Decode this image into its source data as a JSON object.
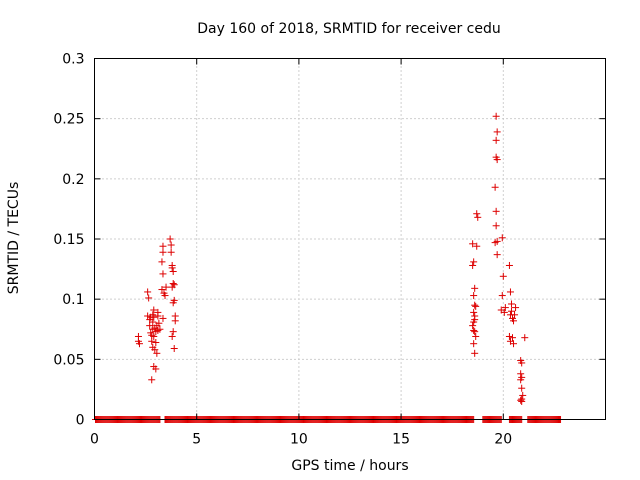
{
  "chart_data": {
    "type": "scatter",
    "title": "Day 160 of 2018, SRMTID for receiver cedu",
    "xlabel": "GPS time / hours",
    "ylabel": "SRMTID / TECUs",
    "xlim": [
      0,
      25
    ],
    "ylim": [
      0,
      0.3
    ],
    "xticks": [
      0,
      5,
      10,
      15,
      20
    ],
    "xtick_labels": [
      "0",
      "5",
      "10",
      "15",
      "20"
    ],
    "yticks": [
      0,
      0.05,
      0.1,
      0.15,
      0.2,
      0.25,
      0.3
    ],
    "ytick_labels": [
      "0",
      "0.05",
      "0.1",
      "0.15",
      "0.2",
      "0.25",
      "0.3"
    ],
    "grid": true,
    "marker": "plus",
    "color": "#dd0000",
    "baseline": {
      "y": 0,
      "x_ranges": [
        [
          0.05,
          3.2
        ],
        [
          3.45,
          18.55
        ],
        [
          19.0,
          19.9
        ],
        [
          20.3,
          20.9
        ],
        [
          21.2,
          22.8
        ]
      ]
    },
    "series": [
      {
        "name": "SRMTID",
        "x": [
          2.15,
          2.2,
          2.15,
          2.6,
          2.65,
          2.6,
          2.75,
          2.7,
          2.75,
          2.8,
          2.8,
          2.7,
          2.85,
          2.9,
          2.85,
          2.95,
          3.0,
          2.9,
          3.0,
          2.85,
          2.95,
          3.05,
          2.9,
          3.0,
          2.8,
          2.85,
          2.9,
          3.1,
          3.15,
          3.05,
          3.1,
          3.2,
          3.1,
          3.35,
          3.35,
          3.3,
          3.35,
          3.3,
          3.4,
          3.35,
          3.45,
          3.5,
          3.7,
          3.75,
          3.75,
          3.8,
          3.85,
          3.85,
          3.8,
          3.9,
          3.9,
          3.95,
          3.95,
          3.85,
          3.8,
          3.9,
          3.8,
          3.85,
          18.5,
          18.55,
          18.5,
          18.6,
          18.55,
          18.6,
          18.65,
          18.55,
          18.6,
          18.6,
          18.55,
          18.5,
          18.55,
          18.6,
          18.65,
          18.55,
          18.6,
          18.7,
          18.75,
          18.7,
          19.65,
          19.7,
          19.65,
          19.65,
          19.7,
          19.6,
          19.65,
          19.65,
          19.7,
          19.6,
          19.7,
          19.95,
          20.0,
          19.95,
          20.05,
          19.9,
          20.1,
          20.3,
          20.35,
          20.4,
          20.35,
          20.3,
          20.45,
          20.35,
          20.5,
          20.45,
          20.55,
          20.6,
          20.4,
          20.5,
          20.85,
          20.9,
          20.85,
          20.9,
          20.85,
          20.9,
          20.95,
          20.9,
          20.85,
          20.9,
          21.05
        ],
        "y": [
          0.069,
          0.063,
          0.065,
          0.106,
          0.101,
          0.086,
          0.085,
          0.083,
          0.072,
          0.07,
          0.065,
          0.078,
          0.081,
          0.085,
          0.075,
          0.076,
          0.073,
          0.069,
          0.064,
          0.06,
          0.058,
          0.055,
          0.044,
          0.042,
          0.033,
          0.087,
          0.091,
          0.086,
          0.08,
          0.078,
          0.074,
          0.075,
          0.089,
          0.144,
          0.139,
          0.131,
          0.121,
          0.108,
          0.105,
          0.084,
          0.103,
          0.11,
          0.15,
          0.145,
          0.139,
          0.128,
          0.123,
          0.113,
          0.11,
          0.112,
          0.099,
          0.086,
          0.082,
          0.073,
          0.069,
          0.059,
          0.126,
          0.097,
          0.146,
          0.131,
          0.128,
          0.109,
          0.103,
          0.095,
          0.094,
          0.089,
          0.086,
          0.083,
          0.081,
          0.078,
          0.074,
          0.073,
          0.069,
          0.063,
          0.055,
          0.171,
          0.168,
          0.144,
          0.252,
          0.239,
          0.232,
          0.218,
          0.216,
          0.193,
          0.173,
          0.161,
          0.148,
          0.147,
          0.137,
          0.151,
          0.119,
          0.103,
          0.089,
          0.091,
          0.093,
          0.128,
          0.106,
          0.096,
          0.087,
          0.069,
          0.068,
          0.065,
          0.063,
          0.084,
          0.087,
          0.093,
          0.09,
          0.082,
          0.049,
          0.047,
          0.038,
          0.035,
          0.033,
          0.026,
          0.02,
          0.017,
          0.016,
          0.015,
          0.068
        ]
      }
    ]
  }
}
